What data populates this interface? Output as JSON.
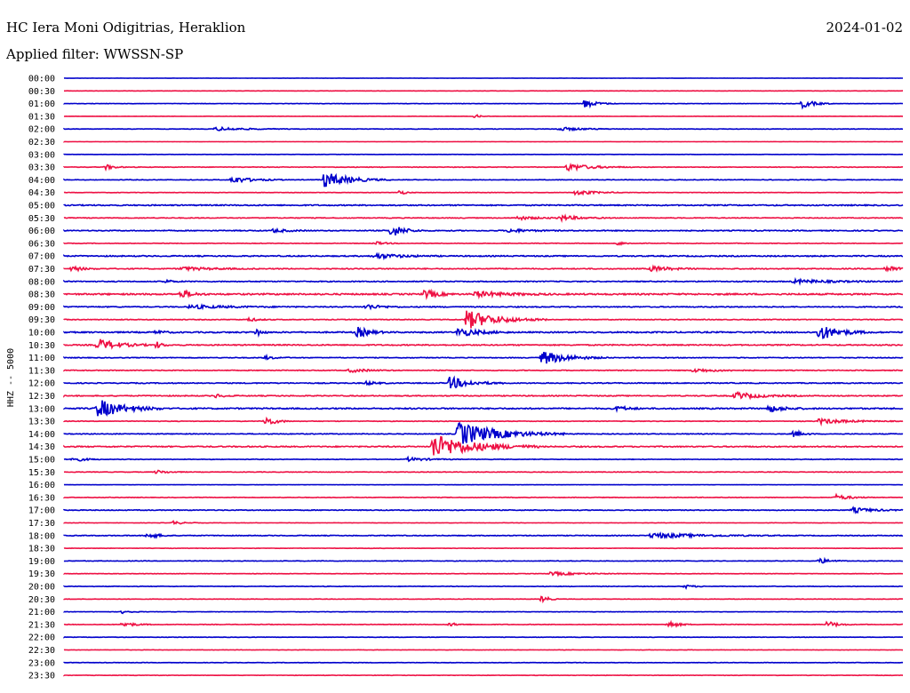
{
  "header": {
    "station": "HC Iera Moni Odigitrias, Heraklion",
    "date": "2024-01-02",
    "filter": "Applied filter: WWSSN-SP"
  },
  "chart_data": {
    "type": "line",
    "title": "HC Iera Moni Odigitrias, Heraklion",
    "subtitle": "Applied filter: WWSSN-SP",
    "ylabel": "HHZ -- 5000",
    "xlabel": "",
    "colors": [
      "#0000cc",
      "#ee1144"
    ],
    "grid": false,
    "rows": [
      {
        "label": "00:00",
        "noise": 0.15,
        "events": []
      },
      {
        "label": "00:30",
        "noise": 0.15,
        "events": []
      },
      {
        "label": "01:00",
        "noise": 0.2,
        "events": [
          [
            0.62,
            5,
            12
          ],
          [
            0.88,
            5,
            12
          ]
        ]
      },
      {
        "label": "01:30",
        "noise": 0.15,
        "events": [
          [
            0.49,
            2,
            6
          ]
        ]
      },
      {
        "label": "02:00",
        "noise": 0.25,
        "events": [
          [
            0.18,
            2,
            30
          ],
          [
            0.59,
            2,
            25
          ]
        ]
      },
      {
        "label": "02:30",
        "noise": 0.15,
        "events": []
      },
      {
        "label": "03:00",
        "noise": 0.15,
        "events": []
      },
      {
        "label": "03:30",
        "noise": 0.3,
        "events": [
          [
            0.05,
            3,
            8
          ],
          [
            0.6,
            4,
            25
          ]
        ]
      },
      {
        "label": "04:00",
        "noise": 0.3,
        "events": [
          [
            0.2,
            4,
            20
          ],
          [
            0.31,
            9,
            25
          ]
        ]
      },
      {
        "label": "04:30",
        "noise": 0.2,
        "events": [
          [
            0.4,
            3,
            6
          ],
          [
            0.61,
            3,
            20
          ]
        ]
      },
      {
        "label": "05:00",
        "noise": 0.6,
        "events": []
      },
      {
        "label": "05:30",
        "noise": 0.4,
        "events": [
          [
            0.54,
            2,
            20
          ],
          [
            0.59,
            3,
            20
          ]
        ]
      },
      {
        "label": "06:00",
        "noise": 0.5,
        "events": [
          [
            0.25,
            2,
            15
          ],
          [
            0.39,
            8,
            12
          ],
          [
            0.53,
            2,
            20
          ]
        ]
      },
      {
        "label": "06:30",
        "noise": 0.3,
        "events": [
          [
            0.37,
            2,
            10
          ],
          [
            0.66,
            2,
            8
          ]
        ]
      },
      {
        "label": "07:00",
        "noise": 0.6,
        "events": [
          [
            0.37,
            3,
            25
          ]
        ]
      },
      {
        "label": "07:30",
        "noise": 0.5,
        "events": [
          [
            0.01,
            3,
            10
          ],
          [
            0.14,
            2,
            30
          ],
          [
            0.7,
            3,
            20
          ],
          [
            0.98,
            4,
            12
          ]
        ]
      },
      {
        "label": "08:00",
        "noise": 0.5,
        "events": [
          [
            0.12,
            2,
            8
          ],
          [
            0.87,
            2,
            40
          ]
        ]
      },
      {
        "label": "08:30",
        "noise": 0.8,
        "events": [
          [
            0.14,
            5,
            10
          ],
          [
            0.43,
            5,
            12
          ],
          [
            0.49,
            3,
            30
          ]
        ]
      },
      {
        "label": "09:00",
        "noise": 0.5,
        "events": [
          [
            0.15,
            2,
            40
          ],
          [
            0.36,
            3,
            15
          ]
        ]
      },
      {
        "label": "09:30",
        "noise": 0.4,
        "events": [
          [
            0.22,
            2,
            10
          ],
          [
            0.48,
            11,
            30
          ]
        ]
      },
      {
        "label": "10:00",
        "noise": 0.7,
        "events": [
          [
            0.11,
            2,
            8
          ],
          [
            0.23,
            5,
            4
          ],
          [
            0.35,
            6,
            12
          ],
          [
            0.47,
            5,
            20
          ],
          [
            0.9,
            9,
            20
          ]
        ]
      },
      {
        "label": "10:30",
        "noise": 0.6,
        "events": [
          [
            0.04,
            7,
            20
          ],
          [
            0.11,
            4,
            6
          ]
        ]
      },
      {
        "label": "11:00",
        "noise": 0.4,
        "events": [
          [
            0.24,
            2,
            10
          ],
          [
            0.57,
            8,
            25
          ]
        ]
      },
      {
        "label": "11:30",
        "noise": 0.4,
        "events": [
          [
            0.34,
            2,
            20
          ],
          [
            0.75,
            2,
            25
          ]
        ]
      },
      {
        "label": "12:00",
        "noise": 0.5,
        "events": [
          [
            0.36,
            2,
            10
          ],
          [
            0.46,
            7,
            20
          ]
        ]
      },
      {
        "label": "12:30",
        "noise": 0.5,
        "events": [
          [
            0.18,
            2,
            10
          ],
          [
            0.8,
            4,
            25
          ]
        ]
      },
      {
        "label": "13:00",
        "noise": 0.7,
        "events": [
          [
            0.04,
            11,
            25
          ],
          [
            0.66,
            3,
            10
          ],
          [
            0.84,
            4,
            15
          ]
        ]
      },
      {
        "label": "13:30",
        "noise": 0.3,
        "events": [
          [
            0.24,
            6,
            10
          ],
          [
            0.9,
            3,
            30
          ]
        ]
      },
      {
        "label": "14:00",
        "noise": 0.4,
        "events": [
          [
            0.47,
            14,
            40
          ],
          [
            0.87,
            4,
            8
          ]
        ]
      },
      {
        "label": "14:30",
        "noise": 0.6,
        "events": [
          [
            0.44,
            14,
            40
          ]
        ]
      },
      {
        "label": "15:00",
        "noise": 0.3,
        "events": [
          [
            0.01,
            3,
            12
          ],
          [
            0.41,
            2,
            20
          ]
        ]
      },
      {
        "label": "15:30",
        "noise": 0.3,
        "events": [
          [
            0.11,
            2,
            12
          ]
        ]
      },
      {
        "label": "16:00",
        "noise": 0.15,
        "events": []
      },
      {
        "label": "16:30",
        "noise": 0.3,
        "events": [
          [
            0.92,
            3,
            15
          ]
        ]
      },
      {
        "label": "17:00",
        "noise": 0.4,
        "events": [
          [
            0.94,
            3,
            20
          ]
        ]
      },
      {
        "label": "17:30",
        "noise": 0.2,
        "events": [
          [
            0.13,
            2,
            10
          ]
        ]
      },
      {
        "label": "18:00",
        "noise": 0.4,
        "events": [
          [
            0.1,
            4,
            10
          ],
          [
            0.7,
            3,
            50
          ]
        ]
      },
      {
        "label": "18:30",
        "noise": 0.2,
        "events": []
      },
      {
        "label": "19:00",
        "noise": 0.3,
        "events": [
          [
            0.9,
            3,
            12
          ]
        ]
      },
      {
        "label": "19:30",
        "noise": 0.2,
        "events": [
          [
            0.58,
            2,
            30
          ]
        ]
      },
      {
        "label": "20:00",
        "noise": 0.3,
        "events": [
          [
            0.74,
            2,
            8
          ]
        ]
      },
      {
        "label": "20:30",
        "noise": 0.2,
        "events": [
          [
            0.57,
            5,
            6
          ]
        ]
      },
      {
        "label": "21:00",
        "noise": 0.2,
        "events": [
          [
            0.07,
            2,
            8
          ]
        ]
      },
      {
        "label": "21:30",
        "noise": 0.3,
        "events": [
          [
            0.07,
            3,
            12
          ],
          [
            0.46,
            2,
            8
          ],
          [
            0.72,
            4,
            10
          ],
          [
            0.91,
            4,
            10
          ]
        ]
      },
      {
        "label": "22:00",
        "noise": 0.2,
        "events": []
      },
      {
        "label": "22:30",
        "noise": 0.2,
        "events": []
      },
      {
        "label": "23:00",
        "noise": 0.2,
        "events": []
      },
      {
        "label": "23:30",
        "noise": 0.2,
        "events": []
      }
    ]
  }
}
